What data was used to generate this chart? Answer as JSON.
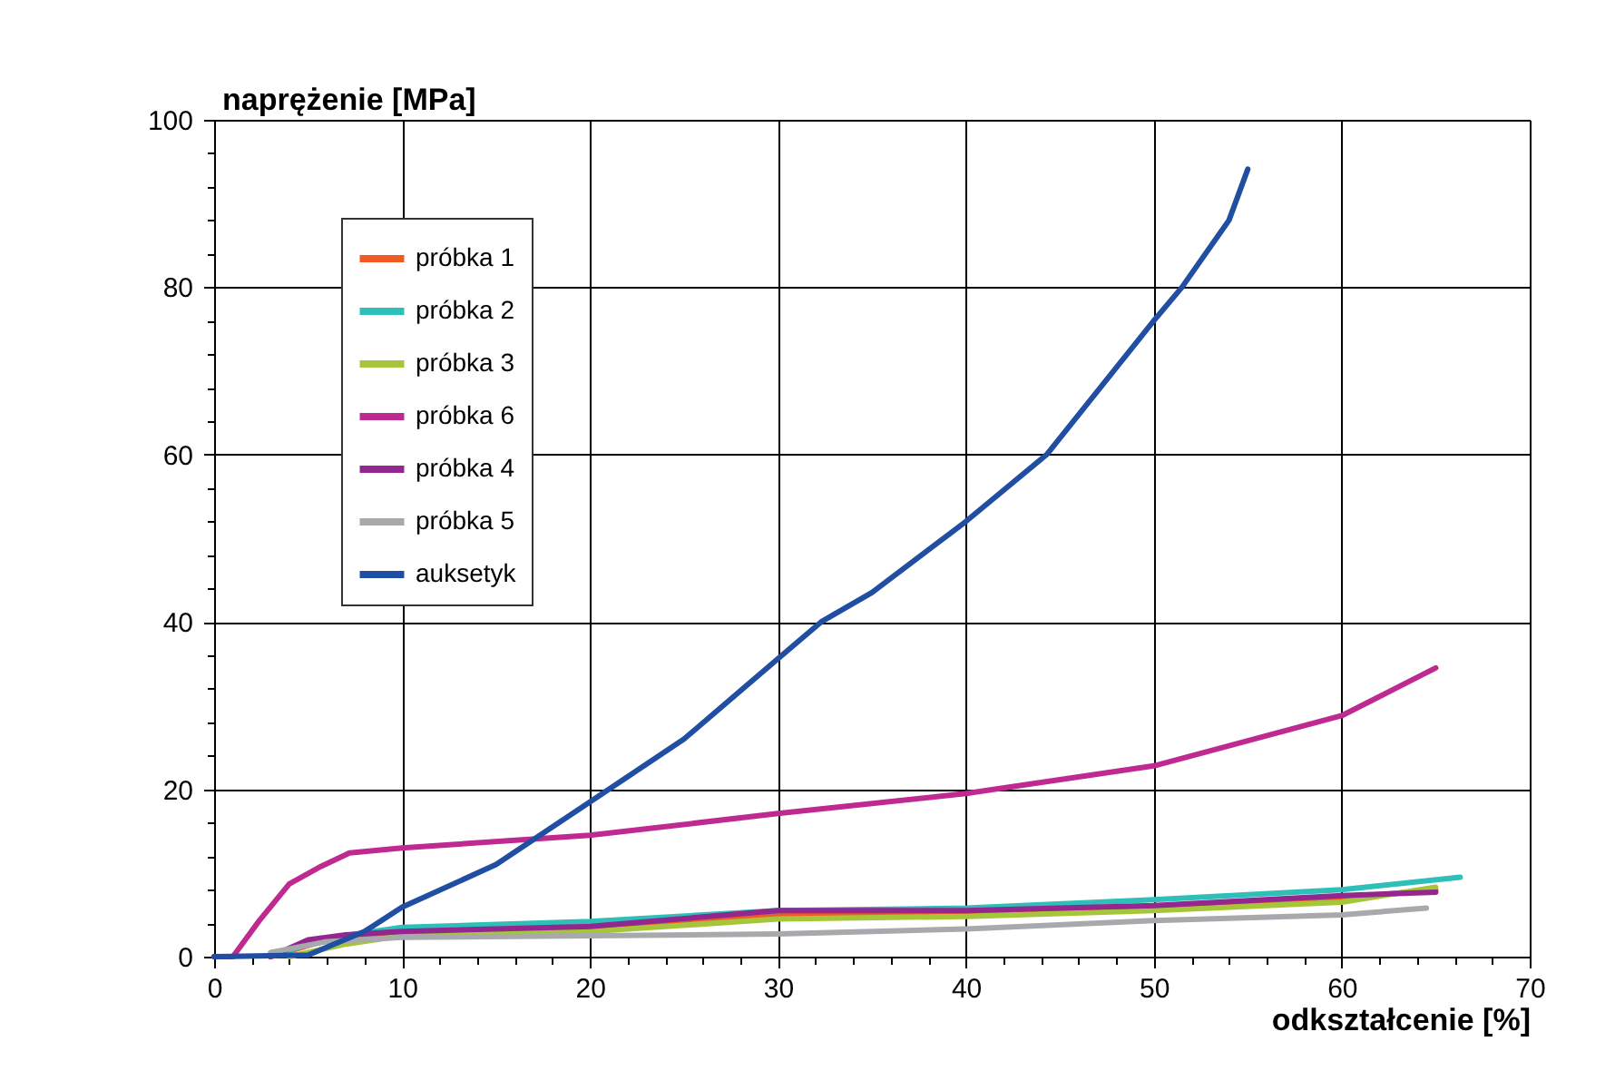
{
  "chart_data": {
    "type": "line",
    "xlabel": "odkształcenie  [%]",
    "ylabel": "naprężenie  [MPa]",
    "xlim": [
      0,
      70
    ],
    "ylim": [
      0,
      100
    ],
    "xticks": [
      0,
      {
        "value": 2,
        "label": null
      },
      {
        "value": 4,
        "label": null
      },
      {
        "value": 6,
        "label": null
      },
      {
        "value": 8,
        "label": null
      },
      10,
      {
        "value": 12,
        "label": null
      },
      {
        "value": 14,
        "label": null
      },
      {
        "value": 16,
        "label": null
      },
      {
        "value": 18,
        "label": null
      },
      20,
      {
        "value": 22,
        "label": null
      },
      {
        "value": 24,
        "label": null
      },
      {
        "value": 26,
        "label": null
      },
      {
        "value": 28,
        "label": null
      },
      30,
      {
        "value": 32,
        "label": null
      },
      {
        "value": 34,
        "label": null
      },
      {
        "value": 36,
        "label": null
      },
      {
        "value": 38,
        "label": null
      },
      40,
      {
        "value": 42,
        "label": null
      },
      {
        "value": 44,
        "label": null
      },
      {
        "value": 46,
        "label": null
      },
      {
        "value": 48,
        "label": null
      },
      50,
      {
        "value": 52,
        "label": null
      },
      {
        "value": 54,
        "label": null
      },
      {
        "value": 56,
        "label": null
      },
      {
        "value": 58,
        "label": null
      },
      60,
      {
        "value": 62,
        "label": null
      },
      {
        "value": 64,
        "label": null
      },
      {
        "value": 66,
        "label": null
      },
      {
        "value": 68,
        "label": null
      },
      70
    ],
    "yticks": [
      0,
      {
        "value": 4,
        "label": null
      },
      {
        "value": 8,
        "label": null
      },
      {
        "value": 12,
        "label": null
      },
      {
        "value": 16,
        "label": null
      },
      20,
      {
        "value": 24,
        "label": null
      },
      {
        "value": 28,
        "label": null
      },
      {
        "value": 32,
        "label": null
      },
      {
        "value": 36,
        "label": null
      },
      40,
      {
        "value": 44,
        "label": null
      },
      {
        "value": 48,
        "label": null
      },
      {
        "value": 52,
        "label": null
      },
      {
        "value": 56,
        "label": null
      },
      60,
      {
        "value": 64,
        "label": null
      },
      {
        "value": 68,
        "label": null
      },
      {
        "value": 72,
        "label": null
      },
      {
        "value": 76,
        "label": null
      },
      80,
      {
        "value": 84,
        "label": null
      },
      {
        "value": 88,
        "label": null
      },
      {
        "value": 92,
        "label": null
      },
      {
        "value": 96,
        "label": null
      },
      100
    ],
    "grid": true,
    "legend": "top left",
    "line_style": "solid",
    "marker": "none",
    "series": [
      {
        "name": "próbka 1",
        "color": "#f15a24",
        "x": [
          3,
          6,
          10,
          20,
          30,
          40,
          50,
          60,
          65
        ],
        "values": [
          0,
          2,
          3,
          3.5,
          5,
          5.4,
          6,
          7,
          8
        ]
      },
      {
        "name": "próbka 2",
        "color": "#2ebfb8",
        "x": [
          3,
          6,
          10,
          20,
          30,
          40,
          50,
          60,
          66.3
        ],
        "values": [
          0,
          2.2,
          3.5,
          4.2,
          5.5,
          5.8,
          6.8,
          8,
          9.5
        ]
      },
      {
        "name": "próbka 3",
        "color": "#a5c63b",
        "x": [
          4,
          7,
          10,
          20,
          30,
          40,
          50,
          60,
          65
        ],
        "values": [
          0,
          1.5,
          2.5,
          3,
          4.5,
          4.8,
          5.5,
          6.5,
          8.3
        ]
      },
      {
        "name": "próbka 6",
        "color": "#be2a8f",
        "x": [
          0,
          1,
          2.4,
          4,
          5.7,
          7.2,
          10,
          20,
          30,
          40,
          50,
          60,
          65
        ],
        "values": [
          0,
          0,
          4.3,
          8.7,
          10.8,
          12.4,
          13,
          14.5,
          17.1,
          19.5,
          22.8,
          28.8,
          34.5
        ]
      },
      {
        "name": "próbka 4",
        "color": "#93278f",
        "x": [
          3,
          5,
          7,
          10,
          20,
          30,
          40,
          50,
          60,
          65
        ],
        "values": [
          0,
          2,
          2.6,
          3,
          3.6,
          5.5,
          5.5,
          6.1,
          7.3,
          7.7
        ]
      },
      {
        "name": "próbka 5",
        "color": "#a7a9ac",
        "x": [
          3,
          6,
          10,
          20,
          30,
          40,
          50,
          60,
          64.5
        ],
        "values": [
          0.5,
          1.8,
          2.3,
          2.5,
          2.7,
          3.3,
          4.3,
          5,
          5.8
        ]
      },
      {
        "name": "auksetyk",
        "color": "#1f4ea3",
        "x": [
          0,
          5,
          8,
          10,
          15,
          20,
          25,
          30,
          32.3,
          35,
          40,
          44.3,
          50,
          51.5,
          54,
          55
        ],
        "values": [
          0,
          0.2,
          3,
          5.9,
          11,
          18.5,
          26,
          35.6,
          40,
          43.5,
          52,
          60,
          76,
          80,
          88,
          94.1
        ]
      }
    ]
  }
}
